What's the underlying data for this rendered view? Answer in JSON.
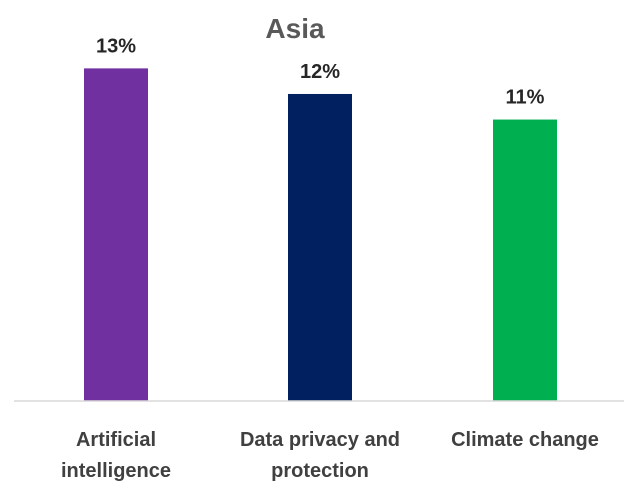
{
  "chart_data": {
    "type": "bar",
    "title": "Asia",
    "categories": [
      "Artificial intelligence",
      "Data privacy and protection",
      "Climate change"
    ],
    "category_label_lines": [
      [
        "Artificial",
        "intelligence"
      ],
      [
        "Data privacy and",
        "protection"
      ],
      [
        "Climate change"
      ]
    ],
    "values": [
      13,
      12,
      11
    ],
    "data_labels": [
      "13%",
      "12%",
      "11%"
    ],
    "colors": [
      "#7030a0",
      "#002060",
      "#00b050"
    ],
    "xlabel": "",
    "ylabel": "",
    "ylim": [
      0,
      14.5
    ],
    "grid": false,
    "legend": "none"
  }
}
